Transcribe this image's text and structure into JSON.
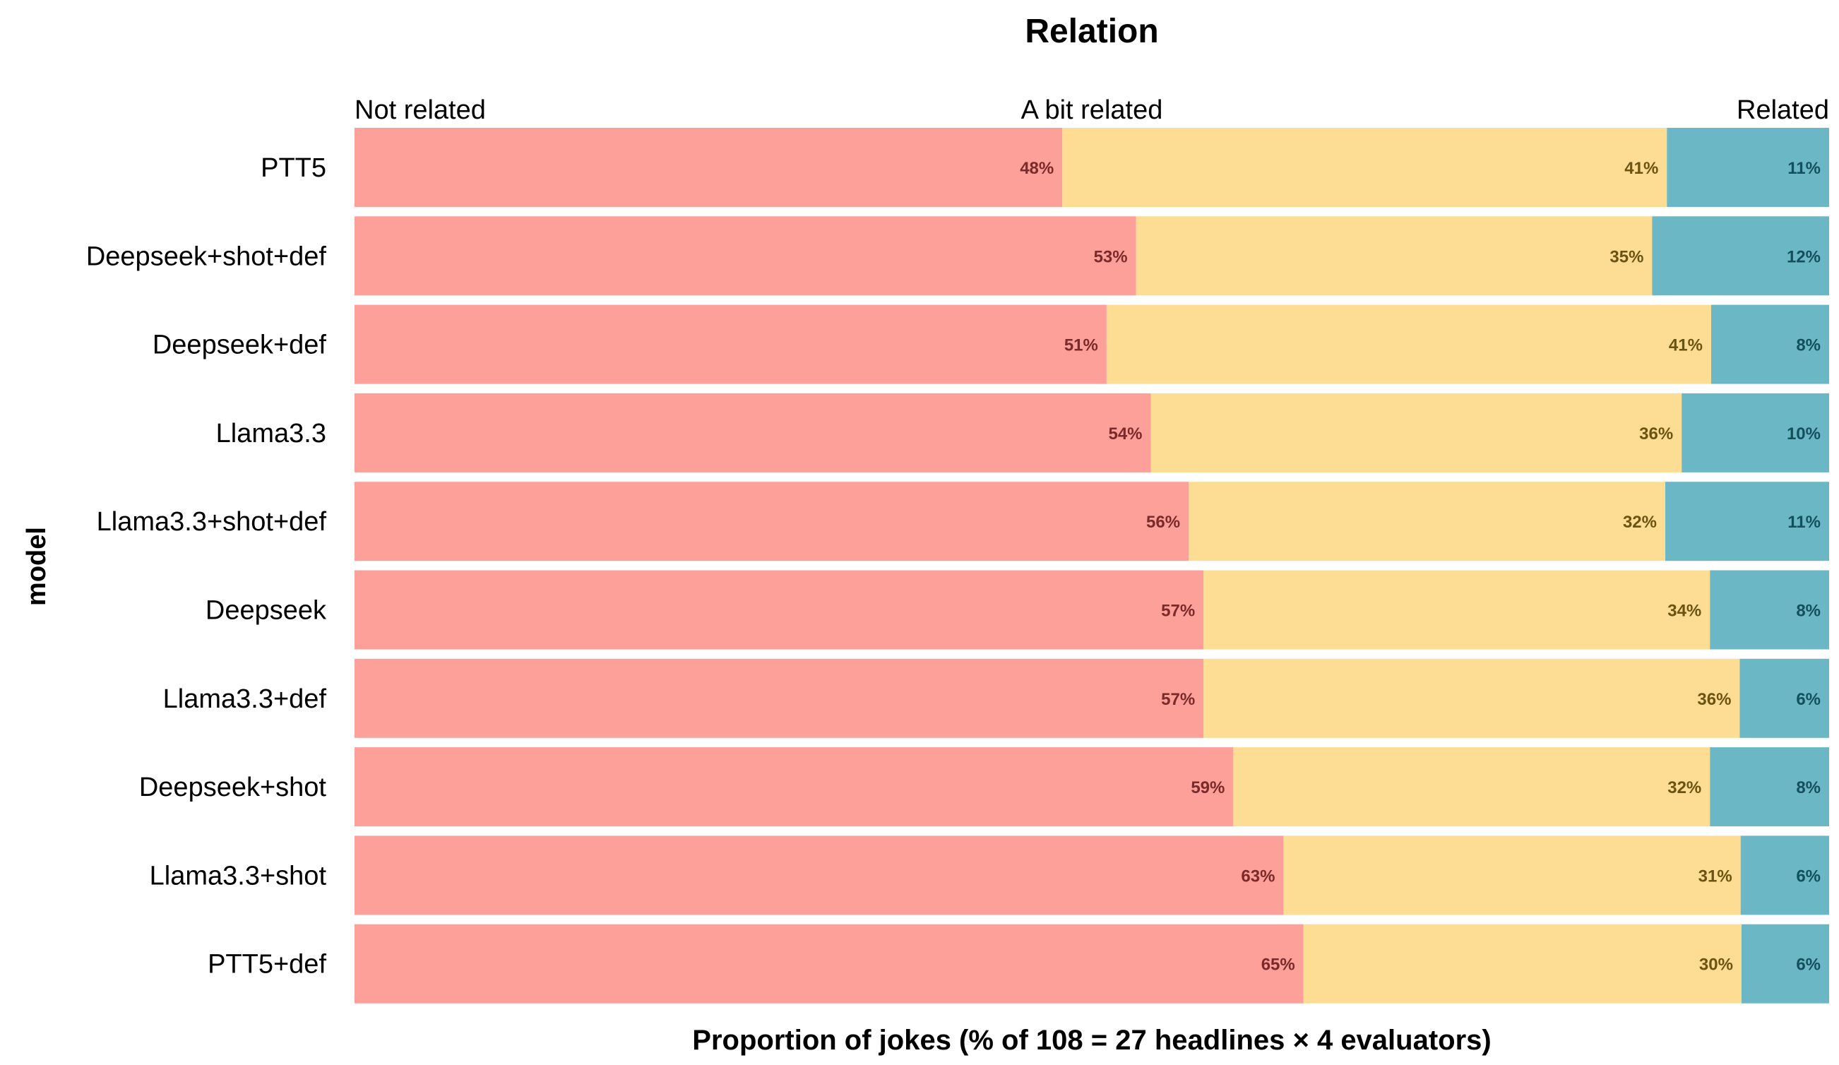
{
  "chart_data": {
    "type": "bar",
    "orientation": "horizontal",
    "stacked": true,
    "normalized": true,
    "title": "Relation",
    "xlabel": "Proportion of jokes (% of 108 = 27 headlines × 4 evaluators)",
    "ylabel": "model",
    "xlim": [
      0,
      100
    ],
    "grid": false,
    "legend": "top (labels above bars)",
    "categories": [
      "PTT5",
      "Deepseek+shot+def",
      "Deepseek+def",
      "Llama3.3",
      "Llama3.3+shot+def",
      "Deepseek",
      "Llama3.3+def",
      "Deepseek+shot",
      "Llama3.3+shot",
      "PTT5+def"
    ],
    "series": [
      {
        "name": "Not related",
        "color": "#fda099",
        "label_color": "#7a2a2a",
        "values": [
          48,
          53,
          51,
          54,
          56,
          57,
          57,
          59,
          63,
          65
        ],
        "labels": [
          "48%",
          "53%",
          "51%",
          "54%",
          "56%",
          "57%",
          "57%",
          "59%",
          "63%",
          "65%"
        ]
      },
      {
        "name": "A bit related",
        "color": "#fddc93",
        "label_color": "#6b5412",
        "values": [
          41,
          35,
          41,
          36,
          32,
          34,
          36,
          32,
          31,
          30
        ],
        "labels": [
          "41%",
          "35%",
          "41%",
          "36%",
          "32%",
          "34%",
          "36%",
          "32%",
          "31%",
          "30%"
        ]
      },
      {
        "name": "Related",
        "color": "#6cb7c6",
        "label_color": "#14505c",
        "values": [
          11,
          12,
          8,
          10,
          11,
          8,
          6,
          8,
          6,
          6
        ],
        "labels": [
          "11%",
          "12%",
          "8%",
          "10%",
          "11%",
          "8%",
          "6%",
          "8%",
          "6%",
          "6%"
        ]
      }
    ]
  }
}
